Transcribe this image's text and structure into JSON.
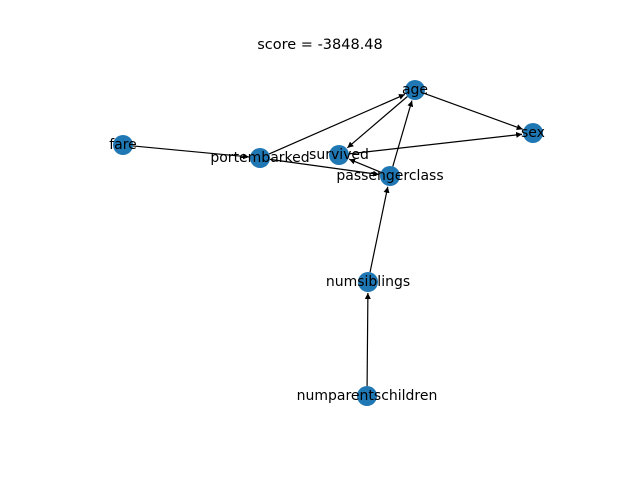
{
  "figure": {
    "title": "score = -3848.48",
    "node_color": "#1f77b4",
    "edge_color": "#000000",
    "label_color": "#000000",
    "background": "#ffffff"
  },
  "graph": {
    "nodes": [
      {
        "id": "age",
        "label": "age"
      },
      {
        "id": "sex",
        "label": "sex"
      },
      {
        "id": "fare",
        "label": "fare"
      },
      {
        "id": "portembarked",
        "label": "portembarked"
      },
      {
        "id": "survived",
        "label": "survived"
      },
      {
        "id": "passengerclass",
        "label": "passengerclass"
      },
      {
        "id": "numsiblings",
        "label": "numsiblings"
      },
      {
        "id": "numparentschildren",
        "label": "numparentschildren"
      }
    ],
    "edges": [
      {
        "source": "fare",
        "target": "portembarked"
      },
      {
        "source": "portembarked",
        "target": "age"
      },
      {
        "source": "portembarked",
        "target": "passengerclass"
      },
      {
        "source": "age",
        "target": "survived"
      },
      {
        "source": "age",
        "target": "sex"
      },
      {
        "source": "survived",
        "target": "sex"
      },
      {
        "source": "passengerclass",
        "target": "age"
      },
      {
        "source": "passengerclass",
        "target": "survived"
      },
      {
        "source": "numsiblings",
        "target": "passengerclass"
      },
      {
        "source": "numparentschildren",
        "target": "numsiblings"
      }
    ]
  }
}
